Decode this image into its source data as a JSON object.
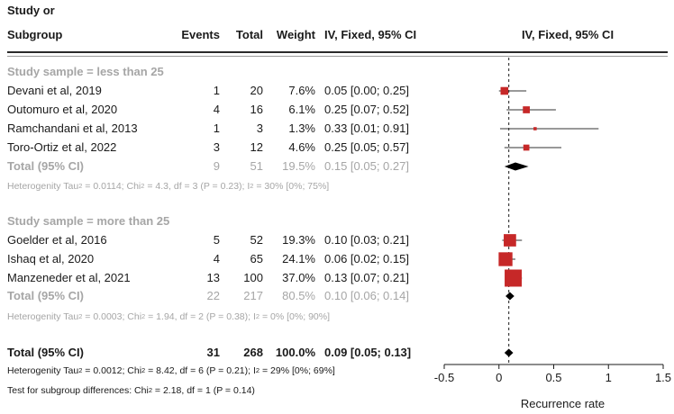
{
  "header": {
    "study_line1": "Study or",
    "study_line2": "Subgroup",
    "events": "Events",
    "total": "Total",
    "weight": "Weight",
    "ci": "IV, Fixed, 95% CI",
    "plot_title": "IV, Fixed, 95% CI"
  },
  "groups": [
    {
      "title": "Study sample = less than 25",
      "studies": [
        {
          "name": "Devani et al, 2019",
          "events": "1",
          "total": "20",
          "weight": "7.6%",
          "ci": "0.05 [0.00; 0.25]"
        },
        {
          "name": "Outomuro et al, 2020",
          "events": "4",
          "total": "16",
          "weight": "6.1%",
          "ci": "0.25 [0.07; 0.52]"
        },
        {
          "name": "Ramchandani et al, 2013",
          "events": "1",
          "total": "3",
          "weight": "1.3%",
          "ci": "0.33 [0.01; 0.91]"
        },
        {
          "name": "Toro-Ortiz et al, 2022",
          "events": "3",
          "total": "12",
          "weight": "4.6%",
          "ci": "0.25 [0.05; 0.57]"
        }
      ],
      "total": {
        "name": "Total (95% CI)",
        "events": "9",
        "total": "51",
        "weight": "19.5%",
        "ci": "0.15 [0.05; 0.27]"
      },
      "heterogeneity": {
        "tau_label": "Heterogenity Tau",
        "tau_value": " = 0.0114; Chi",
        "chi_value": " = 4.3, df = 3 (P = 0.23); I",
        "i_value": " = 30% [0%; 75%]"
      }
    },
    {
      "title": "Study sample = more than 25",
      "studies": [
        {
          "name": "Goelder et al, 2016",
          "events": "5",
          "total": "52",
          "weight": "19.3%",
          "ci": "0.10 [0.03; 0.21]"
        },
        {
          "name": "Ishaq et al, 2020",
          "events": "4",
          "total": "65",
          "weight": "24.1%",
          "ci": "0.06 [0.02; 0.15]"
        },
        {
          "name": "Manzeneder et al, 2021",
          "events": "13",
          "total": "100",
          "weight": "37.0%",
          "ci": "0.13 [0.07; 0.21]"
        }
      ],
      "total": {
        "name": "Total (95% CI)",
        "events": "22",
        "total": "217",
        "weight": "80.5%",
        "ci": "0.10 [0.06; 0.14]"
      },
      "heterogeneity": {
        "tau_label": "Heterogenity Tau",
        "tau_value": " = 0.0003; Chi",
        "chi_value": " = 1.94, df = 2 (P = 0.38); I",
        "i_value": " = 0% [0%; 90%]"
      }
    }
  ],
  "overall": {
    "total": {
      "name": "Total (95% CI)",
      "events": "31",
      "total": "268",
      "weight": "100.0%",
      "ci": "0.09 [0.05; 0.13]"
    },
    "heterogeneity": {
      "tau_label": "Heterogenity Tau",
      "tau_value": " = 0.0012; Chi",
      "chi_value": " = 8.42, df = 6 (P = 0.21); I",
      "i_value": " = 29% [0%; 69%]"
    },
    "subgroup_test": {
      "label": "Test for subgroup differences: Chi",
      "value": " = 2.18, df = 1 (P = 0.14)"
    },
    "superscript": "2"
  },
  "chart_data": {
    "type": "forest",
    "xlabel": "Recurrence rate",
    "xlim": [
      -0.5,
      1.5
    ],
    "xticks": [
      "-0.5",
      "0",
      "0.5",
      "1",
      "1.5"
    ],
    "tick_values": [
      -0.5,
      0,
      0.5,
      1,
      1.5
    ],
    "reference_line": 0.09,
    "study_color": "#c62828",
    "summary_color": "#000000",
    "studies": [
      {
        "label": "Devani et al, 2019",
        "estimate": 0.05,
        "lower": 0.0,
        "upper": 0.25,
        "weight": 7.6
      },
      {
        "label": "Outomuro et al, 2020",
        "estimate": 0.25,
        "lower": 0.07,
        "upper": 0.52,
        "weight": 6.1
      },
      {
        "label": "Ramchandani et al, 2013",
        "estimate": 0.33,
        "lower": 0.01,
        "upper": 0.91,
        "weight": 1.3
      },
      {
        "label": "Toro-Ortiz et al, 2022",
        "estimate": 0.25,
        "lower": 0.05,
        "upper": 0.57,
        "weight": 4.6
      },
      {
        "label": "Goelder et al, 2016",
        "estimate": 0.1,
        "lower": 0.03,
        "upper": 0.21,
        "weight": 19.3
      },
      {
        "label": "Ishaq et al, 2020",
        "estimate": 0.06,
        "lower": 0.02,
        "upper": 0.15,
        "weight": 24.1
      },
      {
        "label": "Manzeneder et al, 2021",
        "estimate": 0.13,
        "lower": 0.07,
        "upper": 0.21,
        "weight": 37.0
      }
    ],
    "summaries": [
      {
        "label": "Total (95% CI) less than 25",
        "estimate": 0.15,
        "lower": 0.05,
        "upper": 0.27
      },
      {
        "label": "Total (95% CI) more than 25",
        "estimate": 0.1,
        "lower": 0.06,
        "upper": 0.14
      },
      {
        "label": "Total (95% CI) overall",
        "estimate": 0.09,
        "lower": 0.05,
        "upper": 0.13
      }
    ]
  }
}
